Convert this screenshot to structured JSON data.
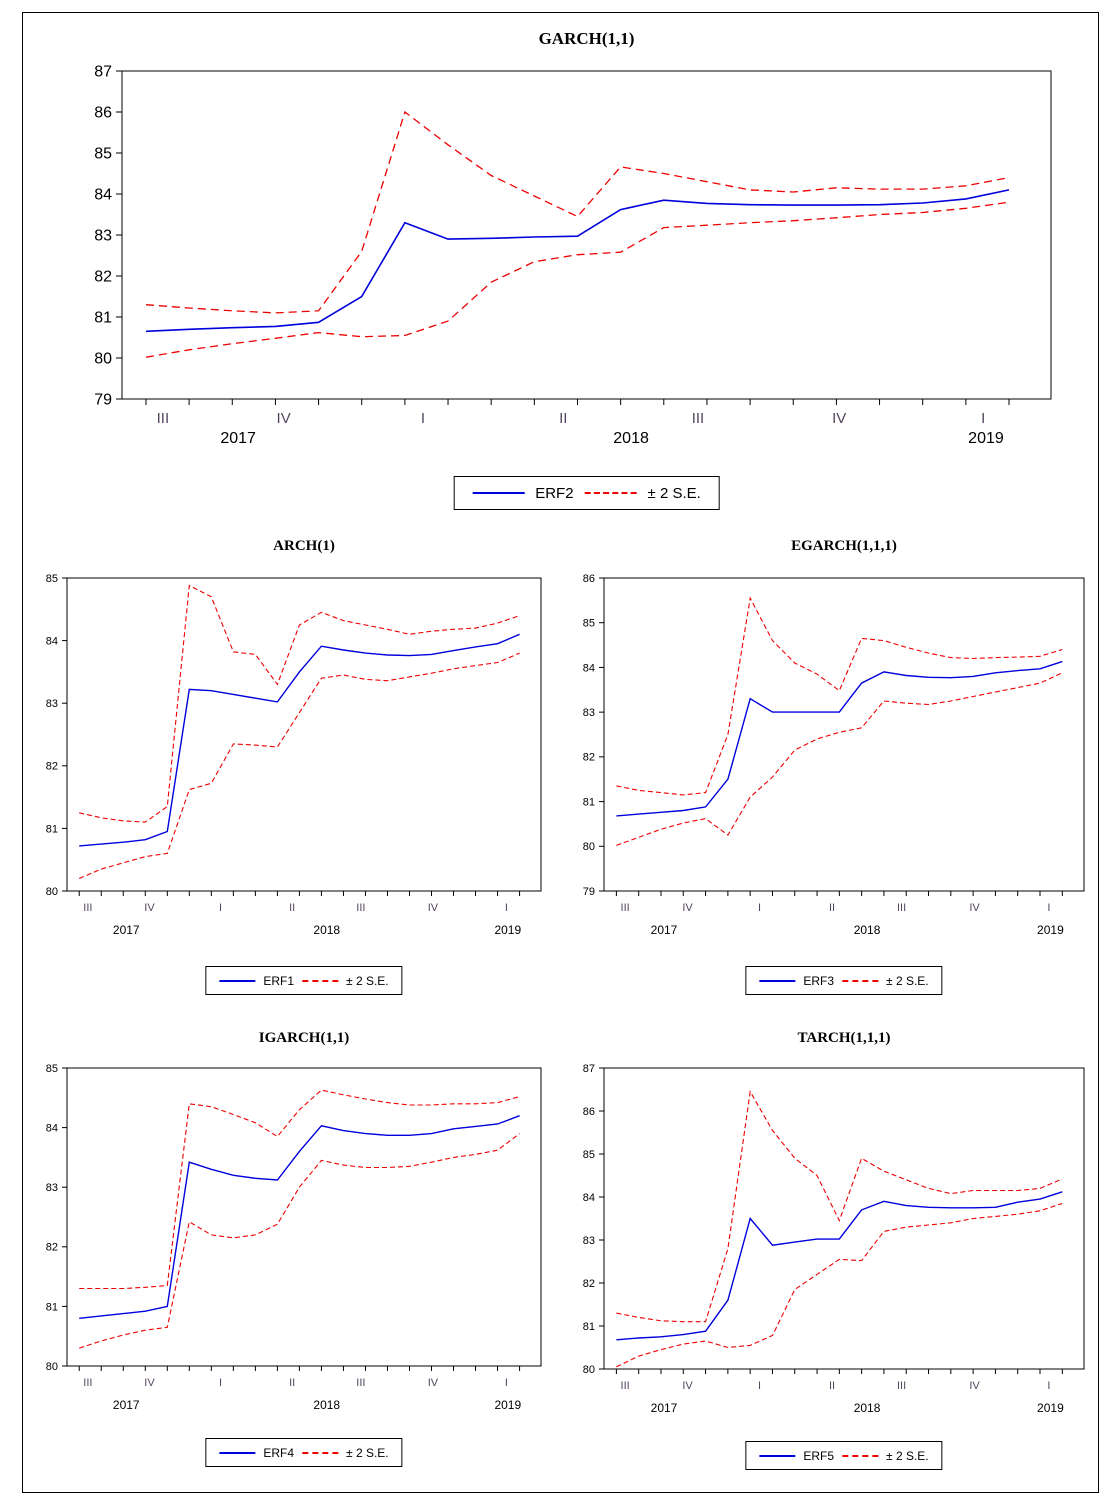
{
  "colors": {
    "forecast_line": "#0000dd",
    "band_line": "#ee0000",
    "quarter_label": "#53455f",
    "axis_text": "#000000",
    "frame": "#000000"
  },
  "se_band_label": "± 2 S.E.",
  "chart_data": [
    {
      "type": "line",
      "title": "GARCH(1,1)",
      "series_name": "ERF2",
      "legend": [
        "ERF2",
        "± 2 S.E."
      ],
      "ylim": [
        79,
        87
      ],
      "yticks": [
        79,
        80,
        81,
        82,
        83,
        84,
        85,
        86,
        87
      ],
      "x_quarter_labels": [
        "III",
        "IV",
        "I",
        "II",
        "III",
        "IV",
        "I"
      ],
      "x_year_labels": [
        "2017",
        "2018",
        "2019"
      ],
      "x_months": [
        "2017M07",
        "2017M08",
        "2017M09",
        "2017M10",
        "2017M11",
        "2017M12",
        "2018M01",
        "2018M02",
        "2018M03",
        "2018M04",
        "2018M05",
        "2018M06",
        "2018M07",
        "2018M08",
        "2018M09",
        "2018M10",
        "2018M11",
        "2018M12",
        "2019M01",
        "2019M02",
        "2019M03"
      ],
      "series": [
        {
          "name": "ERF2",
          "style": "solid",
          "color": "#0000dd",
          "values": [
            80.65,
            80.7,
            80.74,
            80.77,
            80.87,
            81.5,
            83.3,
            82.9,
            82.92,
            82.95,
            82.97,
            83.62,
            83.85,
            83.77,
            83.74,
            83.73,
            83.73,
            83.74,
            83.78,
            83.88,
            84.1
          ]
        },
        {
          "name": "+2 S.E.",
          "style": "dashed",
          "color": "#ee0000",
          "values": [
            81.3,
            81.22,
            81.15,
            81.1,
            81.15,
            82.6,
            86.0,
            85.2,
            84.45,
            83.95,
            83.45,
            84.66,
            84.5,
            84.3,
            84.1,
            84.05,
            84.15,
            84.12,
            84.12,
            84.2,
            84.4
          ]
        },
        {
          "name": "-2 S.E.",
          "style": "dashed",
          "color": "#ee0000",
          "values": [
            80.02,
            80.2,
            80.35,
            80.48,
            80.62,
            80.52,
            80.55,
            80.9,
            81.85,
            82.35,
            82.52,
            82.58,
            83.18,
            83.24,
            83.3,
            83.35,
            83.42,
            83.5,
            83.55,
            83.65,
            83.8
          ]
        }
      ]
    },
    {
      "type": "line",
      "title": "ARCH(1)",
      "series_name": "ERF1",
      "legend": [
        "ERF1",
        "± 2 S.E."
      ],
      "ylim": [
        80,
        85
      ],
      "yticks": [
        80,
        81,
        82,
        83,
        84,
        85
      ],
      "x_quarter_labels": [
        "III",
        "IV",
        "I",
        "II",
        "III",
        "IV",
        "I"
      ],
      "x_year_labels": [
        "2017",
        "2018",
        "2019"
      ],
      "x_months": [
        "2017M07",
        "2017M08",
        "2017M09",
        "2017M10",
        "2017M11",
        "2017M12",
        "2018M01",
        "2018M02",
        "2018M03",
        "2018M04",
        "2018M05",
        "2018M06",
        "2018M07",
        "2018M08",
        "2018M09",
        "2018M10",
        "2018M11",
        "2018M12",
        "2019M01",
        "2019M02",
        "2019M03"
      ],
      "series": [
        {
          "name": "ERF1",
          "style": "solid",
          "color": "#0000dd",
          "values": [
            80.72,
            80.75,
            80.78,
            80.82,
            80.95,
            83.22,
            83.2,
            83.14,
            83.08,
            83.02,
            83.5,
            83.91,
            83.85,
            83.8,
            83.77,
            83.76,
            83.78,
            83.84,
            83.9,
            83.95,
            84.1
          ]
        },
        {
          "name": "+2 S.E.",
          "style": "dashed",
          "color": "#ee0000",
          "values": [
            81.25,
            81.17,
            81.12,
            81.1,
            81.35,
            84.88,
            84.7,
            83.82,
            83.78,
            83.3,
            84.25,
            84.45,
            84.32,
            84.25,
            84.18,
            84.1,
            84.15,
            84.18,
            84.2,
            84.28,
            84.4
          ]
        },
        {
          "name": "-2 S.E.",
          "style": "dashed",
          "color": "#ee0000",
          "values": [
            80.2,
            80.35,
            80.45,
            80.55,
            80.6,
            81.62,
            81.72,
            82.35,
            82.33,
            82.3,
            82.85,
            83.4,
            83.45,
            83.38,
            83.36,
            83.42,
            83.48,
            83.55,
            83.6,
            83.65,
            83.8
          ]
        }
      ]
    },
    {
      "type": "line",
      "title": "EGARCH(1,1,1)",
      "series_name": "ERF3",
      "legend": [
        "ERF3",
        "± 2 S.E."
      ],
      "ylim": [
        79,
        86
      ],
      "yticks": [
        79,
        80,
        81,
        82,
        83,
        84,
        85,
        86
      ],
      "x_quarter_labels": [
        "III",
        "IV",
        "I",
        "II",
        "III",
        "IV",
        "I"
      ],
      "x_year_labels": [
        "2017",
        "2018",
        "2019"
      ],
      "x_months": [
        "2017M07",
        "2017M08",
        "2017M09",
        "2017M10",
        "2017M11",
        "2017M12",
        "2018M01",
        "2018M02",
        "2018M03",
        "2018M04",
        "2018M05",
        "2018M06",
        "2018M07",
        "2018M08",
        "2018M09",
        "2018M10",
        "2018M11",
        "2018M12",
        "2019M01",
        "2019M02",
        "2019M03"
      ],
      "series": [
        {
          "name": "ERF3",
          "style": "solid",
          "color": "#0000dd",
          "values": [
            80.68,
            80.72,
            80.76,
            80.8,
            80.88,
            81.5,
            83.3,
            83.0,
            83.0,
            83.0,
            83.0,
            83.65,
            83.9,
            83.82,
            83.78,
            83.77,
            83.8,
            83.88,
            83.93,
            83.97,
            84.13
          ]
        },
        {
          "name": "+2 S.E.",
          "style": "dashed",
          "color": "#ee0000",
          "values": [
            81.35,
            81.25,
            81.2,
            81.15,
            81.2,
            82.5,
            85.55,
            84.6,
            84.1,
            83.85,
            83.48,
            84.65,
            84.6,
            84.45,
            84.32,
            84.22,
            84.2,
            84.22,
            84.23,
            84.25,
            84.4
          ]
        },
        {
          "name": "-2 S.E.",
          "style": "dashed",
          "color": "#ee0000",
          "values": [
            80.02,
            80.2,
            80.38,
            80.52,
            80.62,
            80.25,
            81.1,
            81.55,
            82.15,
            82.4,
            82.55,
            82.65,
            83.25,
            83.2,
            83.17,
            83.25,
            83.35,
            83.45,
            83.55,
            83.65,
            83.88
          ]
        }
      ]
    },
    {
      "type": "line",
      "title": "IGARCH(1,1)",
      "series_name": "ERF4",
      "legend": [
        "ERF4",
        "± 2 S.E."
      ],
      "ylim": [
        80,
        85
      ],
      "yticks": [
        80,
        81,
        82,
        83,
        84,
        85
      ],
      "x_quarter_labels": [
        "III",
        "IV",
        "I",
        "II",
        "III",
        "IV",
        "I"
      ],
      "x_year_labels": [
        "2017",
        "2018",
        "2019"
      ],
      "x_months": [
        "2017M07",
        "2017M08",
        "2017M09",
        "2017M10",
        "2017M11",
        "2017M12",
        "2018M01",
        "2018M02",
        "2018M03",
        "2018M04",
        "2018M05",
        "2018M06",
        "2018M07",
        "2018M08",
        "2018M09",
        "2018M10",
        "2018M11",
        "2018M12",
        "2019M01",
        "2019M02",
        "2019M03"
      ],
      "series": [
        {
          "name": "ERF4",
          "style": "solid",
          "color": "#0000dd",
          "values": [
            80.8,
            80.84,
            80.88,
            80.92,
            81.0,
            83.42,
            83.3,
            83.2,
            83.15,
            83.12,
            83.6,
            84.03,
            83.95,
            83.9,
            83.87,
            83.87,
            83.9,
            83.98,
            84.02,
            84.06,
            84.2
          ]
        },
        {
          "name": "+2 S.E.",
          "style": "dashed",
          "color": "#ee0000",
          "values": [
            81.3,
            81.3,
            81.3,
            81.32,
            81.35,
            84.4,
            84.35,
            84.22,
            84.08,
            83.85,
            84.3,
            84.63,
            84.55,
            84.48,
            84.42,
            84.38,
            84.38,
            84.4,
            84.4,
            84.42,
            84.52
          ]
        },
        {
          "name": "-2 S.E.",
          "style": "dashed",
          "color": "#ee0000",
          "values": [
            80.3,
            80.42,
            80.52,
            80.6,
            80.65,
            82.42,
            82.2,
            82.15,
            82.2,
            82.38,
            83.0,
            83.45,
            83.37,
            83.33,
            83.33,
            83.35,
            83.42,
            83.5,
            83.55,
            83.62,
            83.9
          ]
        }
      ]
    },
    {
      "type": "line",
      "title": "TARCH(1,1,1)",
      "series_name": "ERF5",
      "legend": [
        "ERF5",
        "± 2 S.E."
      ],
      "ylim": [
        80,
        87
      ],
      "yticks": [
        80,
        81,
        82,
        83,
        84,
        85,
        86,
        87
      ],
      "x_quarter_labels": [
        "III",
        "IV",
        "I",
        "II",
        "III",
        "IV",
        "I"
      ],
      "x_year_labels": [
        "2017",
        "2018",
        "2019"
      ],
      "x_months": [
        "2017M07",
        "2017M08",
        "2017M09",
        "2017M10",
        "2017M11",
        "2017M12",
        "2018M01",
        "2018M02",
        "2018M03",
        "2018M04",
        "2018M05",
        "2018M06",
        "2018M07",
        "2018M08",
        "2018M09",
        "2018M10",
        "2018M11",
        "2018M12",
        "2019M01",
        "2019M02",
        "2019M03"
      ],
      "series": [
        {
          "name": "ERF5",
          "style": "solid",
          "color": "#0000dd",
          "values": [
            80.68,
            80.72,
            80.75,
            80.8,
            80.88,
            81.6,
            83.5,
            82.88,
            82.95,
            83.02,
            83.02,
            83.7,
            83.9,
            83.8,
            83.76,
            83.75,
            83.75,
            83.76,
            83.88,
            83.95,
            84.12
          ]
        },
        {
          "name": "+2 S.E.",
          "style": "dashed",
          "color": "#ee0000",
          "values": [
            81.3,
            81.2,
            81.12,
            81.1,
            81.1,
            82.8,
            86.45,
            85.55,
            84.9,
            84.5,
            83.45,
            84.9,
            84.6,
            84.4,
            84.2,
            84.08,
            84.15,
            84.15,
            84.15,
            84.2,
            84.42
          ]
        },
        {
          "name": "-2 S.E.",
          "style": "dashed",
          "color": "#ee0000",
          "values": [
            80.05,
            80.3,
            80.45,
            80.58,
            80.65,
            80.5,
            80.55,
            80.78,
            81.85,
            82.2,
            82.55,
            82.52,
            83.2,
            83.3,
            83.35,
            83.4,
            83.5,
            83.55,
            83.6,
            83.68,
            83.85
          ]
        }
      ]
    }
  ]
}
